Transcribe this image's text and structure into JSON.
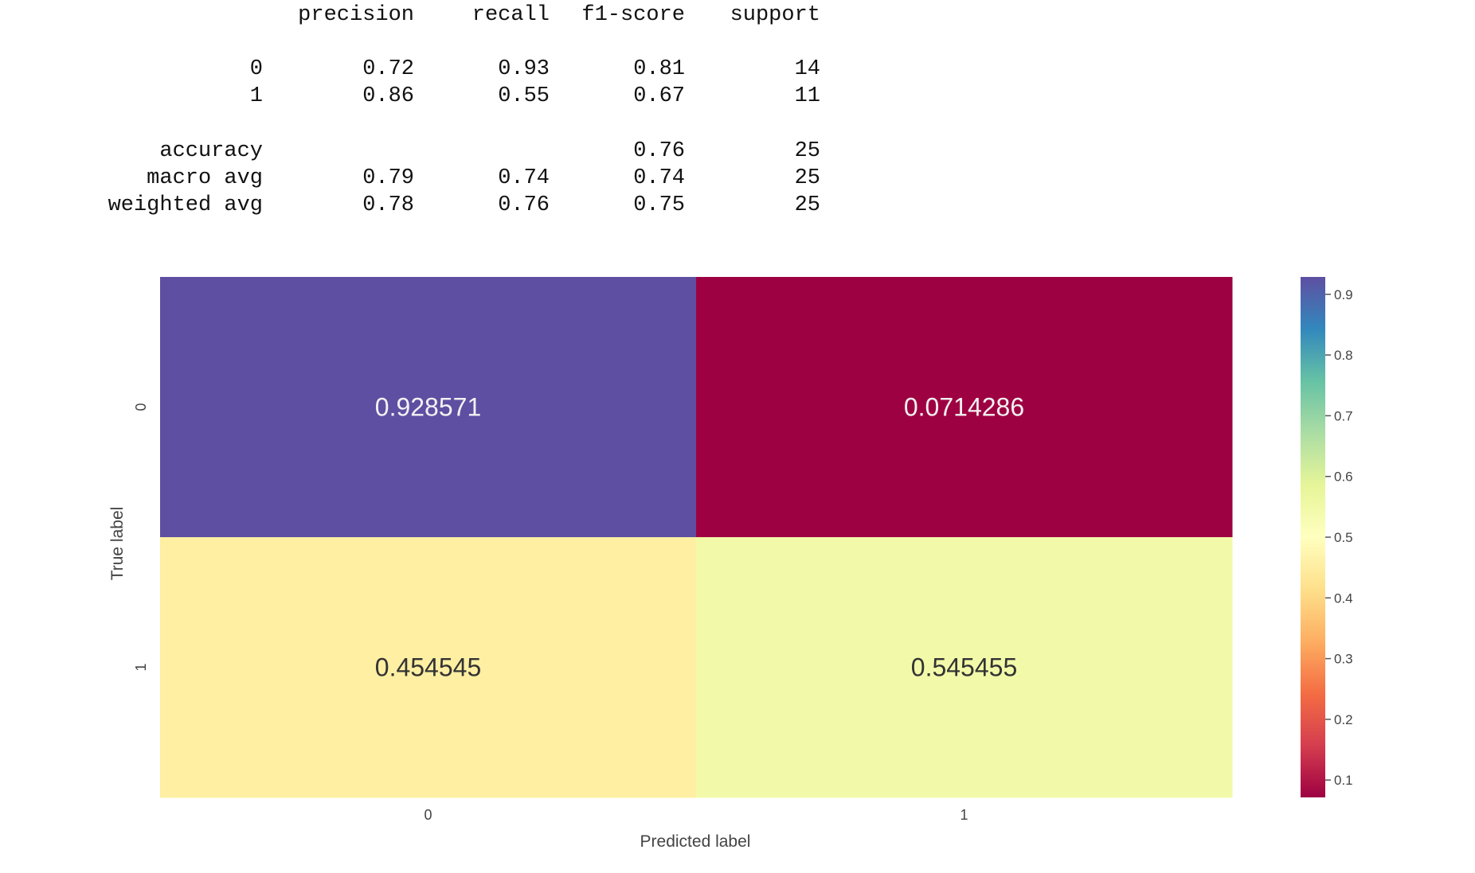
{
  "report": {
    "headers": [
      "precision",
      "recall",
      "f1-score",
      "support"
    ],
    "rows": [
      {
        "label": "0",
        "precision": "0.72",
        "recall": "0.93",
        "f1": "0.81",
        "support": "14"
      },
      {
        "label": "1",
        "precision": "0.86",
        "recall": "0.55",
        "f1": "0.67",
        "support": "11"
      },
      {
        "label": "accuracy",
        "precision": "",
        "recall": "",
        "f1": "0.76",
        "support": "25"
      },
      {
        "label": "macro avg",
        "precision": "0.79",
        "recall": "0.74",
        "f1": "0.74",
        "support": "25"
      },
      {
        "label": "weighted avg",
        "precision": "0.78",
        "recall": "0.76",
        "f1": "0.75",
        "support": "25"
      }
    ]
  },
  "chart_data": {
    "type": "heatmap",
    "xlabel": "Predicted label",
    "ylabel": "True label",
    "x_categories": [
      "0",
      "1"
    ],
    "y_categories": [
      "0",
      "1"
    ],
    "values": [
      [
        0.928571,
        0.0714286
      ],
      [
        0.454545,
        0.545455
      ]
    ],
    "cell_labels": [
      [
        "0.928571",
        "0.0714286"
      ],
      [
        "0.454545",
        "0.545455"
      ]
    ],
    "colormap": "Spectral",
    "colorbar": {
      "range": [
        0.0714286,
        0.928571
      ],
      "ticks": [
        "0.1",
        "0.2",
        "0.3",
        "0.4",
        "0.5",
        "0.6",
        "0.7",
        "0.8",
        "0.9"
      ]
    },
    "colors": {
      "high": "#5e4fa2",
      "low": "#9e0142",
      "mid": "#ffffbf"
    }
  }
}
